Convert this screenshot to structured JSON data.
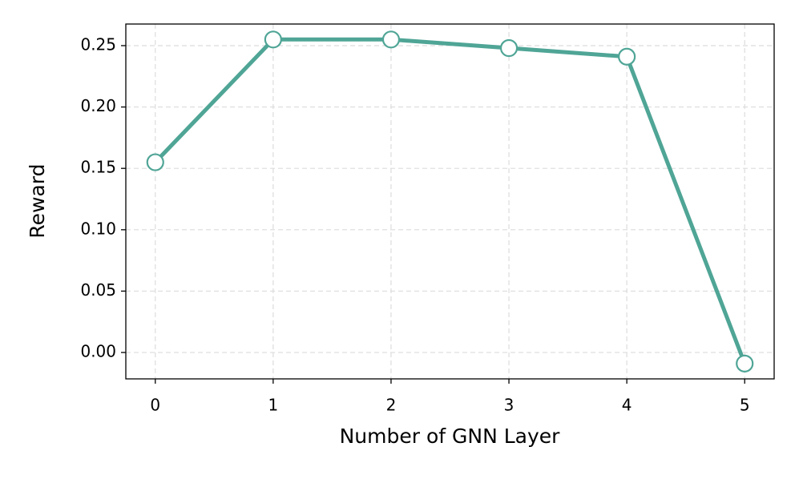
{
  "chart_data": {
    "type": "line",
    "x_label": "Number of GNN Layer",
    "y_label": "Reward",
    "x": [
      0,
      1,
      2,
      3,
      4,
      5
    ],
    "values": [
      0.155,
      0.255,
      0.255,
      0.248,
      0.241,
      -0.009
    ],
    "color": "#4fa596",
    "xlim": [
      -0.25,
      5.25
    ],
    "xticks": [
      0,
      1,
      2,
      3,
      4,
      5
    ],
    "ylim": [
      -0.0215,
      0.2676
    ],
    "yticks": [
      {
        "value": 0,
        "label": "0.00"
      },
      0.05,
      {
        "value": 0.1,
        "label": "0.10"
      },
      0.15,
      {
        "value": 0.2,
        "label": "0.20"
      },
      0.25
    ],
    "grid": true
  }
}
